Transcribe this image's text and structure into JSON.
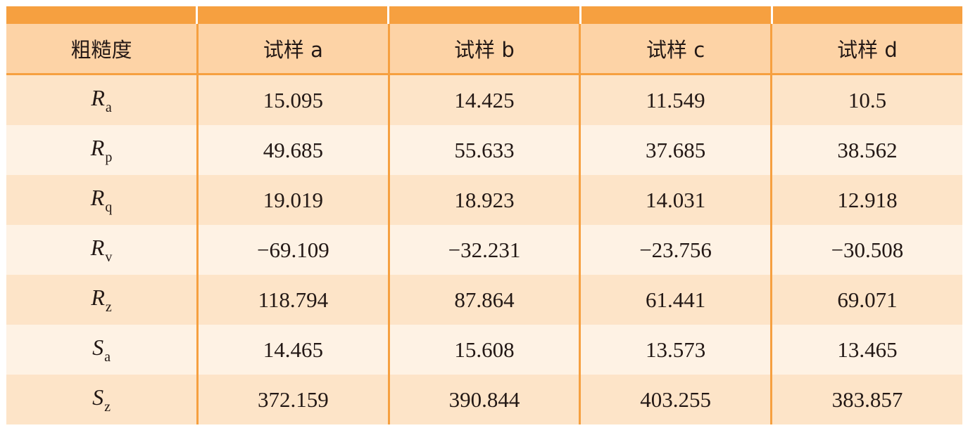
{
  "table": {
    "header": [
      "粗糙度",
      "试样 a",
      "试样 b",
      "试样 c",
      "试样 d"
    ],
    "rows": [
      {
        "symbol": "R",
        "sub": "a",
        "values": [
          "15.095",
          "14.425",
          "11.549",
          "10.5"
        ]
      },
      {
        "symbol": "R",
        "sub": "p",
        "values": [
          "49.685",
          "55.633",
          "37.685",
          "38.562"
        ]
      },
      {
        "symbol": "R",
        "sub": "q",
        "values": [
          "19.019",
          "18.923",
          "14.031",
          "12.918"
        ]
      },
      {
        "symbol": "R",
        "sub": "v",
        "values": [
          "−69.109",
          "−32.231",
          "−23.756",
          "−30.508"
        ]
      },
      {
        "symbol": "R",
        "sub": "z",
        "values": [
          "118.794",
          "87.864",
          "61.441",
          "69.071"
        ]
      },
      {
        "symbol": "S",
        "sub": "a",
        "values": [
          "14.465",
          "15.608",
          "13.573",
          "13.465"
        ]
      },
      {
        "symbol": "S",
        "sub": "z",
        "values": [
          "372.159",
          "390.844",
          "403.255",
          "383.857"
        ]
      }
    ]
  },
  "colors": {
    "accent": "#F6A040",
    "header_bg": "#FDD3A6",
    "row_odd_bg": "#FDE4C8",
    "row_even_bg": "#FEF2E4",
    "text": "#231815"
  }
}
